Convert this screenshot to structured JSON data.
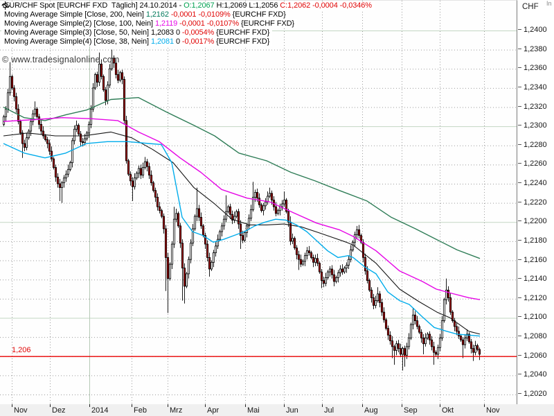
{
  "colors": {
    "up_candle": "#ffffff",
    "down_candle": "#a40000",
    "candle_border": "#000000",
    "grid_major": "#c3d6c3",
    "grid_dotted": "#9b9b9b",
    "year_line": "#b5c9b5",
    "red_line": "#e80000",
    "red_text": "#e00505",
    "green_text": "#00a050",
    "sma200": "#2f7d57",
    "sma100": "#e606e6",
    "sma50": "#141414",
    "sma38": "#00aceb",
    "axis_strip_bg": "#f0f0f0",
    "border": "#7a7a7a"
  },
  "watermark": "© www.tradesignalonline.com",
  "price_line_label": "1,206",
  "axes": {
    "currency_label": "CHF",
    "corner_fragment": "In"
  },
  "legend": {
    "rows": [
      {
        "icon": "candlestick-icon",
        "segments": [
          {
            "text": "EUR/CHF Spot [EURCHF FXD  Täglich] 24.10.2014 - ",
            "color": "#000000"
          },
          {
            "text": "O:1,2067 ",
            "color": "#00a050"
          },
          {
            "text": "H:1,2069 L:1,2056 ",
            "color": "#000000"
          },
          {
            "text": "C:1,2062 -0,0004 -0,0346%",
            "color": "#e00505"
          }
        ]
      },
      {
        "icon": "wave-icon",
        "segments": [
          {
            "text": "Moving Average Simple [Close, 200, Nein] ",
            "color": "#000000"
          },
          {
            "text": "1,2162",
            "color": "#00795a"
          },
          {
            "text": " -0,0001 -0,0109%",
            "color": "#e00505"
          },
          {
            "text": " {EURCHF FXD}",
            "color": "#000000"
          }
        ]
      },
      {
        "icon": "wave-icon",
        "segments": [
          {
            "text": "Moving Average Simple(2) [Close, 100, Nein] ",
            "color": "#000000"
          },
          {
            "text": "1,2119",
            "color": "#e606e6"
          },
          {
            "text": " -0,0001 -0,0107%",
            "color": "#e00505"
          },
          {
            "text": " {EURCHF FXD}",
            "color": "#000000"
          }
        ]
      },
      {
        "icon": "wave-icon",
        "segments": [
          {
            "text": "Moving Average Simple(3) [Close, 50, Nein] ",
            "color": "#000000"
          },
          {
            "text": "1,2083 0",
            "color": "#000000"
          },
          {
            "text": " -0,0054%",
            "color": "#e00505"
          },
          {
            "text": " {EURCHF FXD}",
            "color": "#000000"
          }
        ]
      },
      {
        "icon": "wave-icon",
        "segments": [
          {
            "text": "Moving Average Simple(4) [Close, 38, Nein] ",
            "color": "#000000"
          },
          {
            "text": "1,2081",
            "color": "#00aceb"
          },
          {
            "text": " 0",
            "color": "#000000"
          },
          {
            "text": " -0,0017%",
            "color": "#e00505"
          },
          {
            "text": " {EURCHF FXD}",
            "color": "#000000"
          }
        ]
      }
    ]
  },
  "chart_data": {
    "type": "candlestick",
    "title": "EUR/CHF Spot [EURCHF FXD Täglich] 24.10.2014",
    "price_scale": 10000,
    "y_axis": {
      "min": 12020,
      "max": 12400,
      "tick_step": 20,
      "major_every": 100,
      "ticks": [
        {
          "value": 12400,
          "label": "1,2400"
        },
        {
          "value": 12380,
          "label": "1,2380"
        },
        {
          "value": 12360,
          "label": "1,2360"
        },
        {
          "value": 12340,
          "label": "1,2340"
        },
        {
          "value": 12320,
          "label": "1,2320"
        },
        {
          "value": 12300,
          "label": "1,2300"
        },
        {
          "value": 12280,
          "label": "1,2280"
        },
        {
          "value": 12260,
          "label": "1,2260"
        },
        {
          "value": 12240,
          "label": "1,2240"
        },
        {
          "value": 12220,
          "label": "1,2220"
        },
        {
          "value": 12200,
          "label": "1,2200"
        },
        {
          "value": 12180,
          "label": "1,2180"
        },
        {
          "value": 12160,
          "label": "1,2160"
        },
        {
          "value": 12140,
          "label": "1,2140"
        },
        {
          "value": 12120,
          "label": "1,2120"
        },
        {
          "value": 12100,
          "label": "1,2100"
        },
        {
          "value": 12080,
          "label": "1,2080"
        },
        {
          "value": 12060,
          "label": "1,2060"
        },
        {
          "value": 12040,
          "label": "1,2040"
        },
        {
          "value": 12020,
          "label": "1,2020"
        }
      ]
    },
    "x_axis": {
      "months": [
        {
          "label": "Nov",
          "x": 17
        },
        {
          "label": "Dez",
          "x": 72
        },
        {
          "label": "2014",
          "x": 129,
          "year": true
        },
        {
          "label": "Feb",
          "x": 190
        },
        {
          "label": "Mrz",
          "x": 242
        },
        {
          "label": "Apr",
          "x": 296
        },
        {
          "label": "Mai",
          "x": 354
        },
        {
          "label": "Jun",
          "x": 410
        },
        {
          "label": "Jul",
          "x": 465
        },
        {
          "label": "Aug",
          "x": 523
        },
        {
          "label": "Sep",
          "x": 580
        },
        {
          "label": "Okt",
          "x": 635
        },
        {
          "label": "Nov",
          "x": 699
        }
      ]
    },
    "horizontal_line": {
      "price": 12060,
      "label": "1,206"
    },
    "candles": {
      "x_start": 5,
      "x_step": 3,
      "first_open": 12302,
      "closes": [
        12310,
        12318,
        12335,
        12352,
        12340,
        12331,
        12318,
        12305,
        12293,
        12282,
        12278,
        12288,
        12295,
        12305,
        12313,
        12318,
        12310,
        12302,
        12295,
        12290,
        12286,
        12282,
        12274,
        12266,
        12257,
        12247,
        12240,
        12236,
        12241,
        12246,
        12250,
        12255,
        12262,
        12285,
        12297,
        12301,
        12292,
        12284,
        12283,
        12287,
        12293,
        12302,
        12318,
        12340,
        12354,
        12346,
        12365,
        12352,
        12338,
        12327,
        12343,
        12360,
        12371,
        12366,
        12354,
        12348,
        12356,
        12349,
        12306,
        12264,
        12250,
        12243,
        12237,
        12246,
        12251,
        12256,
        12249,
        12257,
        12263,
        12258,
        12249,
        12241,
        12233,
        12226,
        12216,
        12212,
        12206,
        12193,
        12163,
        12141,
        12156,
        12177,
        12203,
        12209,
        12196,
        12178,
        12152,
        12133,
        12146,
        12161,
        12178,
        12193,
        12206,
        12214,
        12205,
        12196,
        12186,
        12177,
        12163,
        12151,
        12158,
        12168,
        12175,
        12182,
        12190,
        12196,
        12203,
        12211,
        12216,
        12208,
        12202,
        12206,
        12211,
        12198,
        12186,
        12181,
        12189,
        12196,
        12204,
        12213,
        12226,
        12231,
        12225,
        12218,
        12212,
        12217,
        12221,
        12227,
        12230,
        12223,
        12216,
        12209,
        12212,
        12216,
        12219,
        12223,
        12211,
        12200,
        12180,
        12183,
        12173,
        12166,
        12161,
        12156,
        12159,
        12165,
        12170,
        12168,
        12163,
        12158,
        12162,
        12157,
        12148,
        12139,
        12136,
        12142,
        12148,
        12151,
        12145,
        12138,
        12142,
        12147,
        12151,
        12148,
        12152,
        12155,
        12161,
        12171,
        12179,
        12187,
        12192,
        12186,
        12179,
        12163,
        12149,
        12139,
        12129,
        12121,
        12113,
        12118,
        12125,
        12116,
        12106,
        12098,
        12089,
        12082,
        12076,
        12070,
        12066,
        12073,
        12068,
        12062,
        12068,
        12061,
        12070,
        12079,
        12093,
        12103,
        12097,
        12091,
        12085,
        12079,
        12073,
        12079,
        12083,
        12077,
        12070,
        12064,
        12062,
        12069,
        12079,
        12097,
        12119,
        12129,
        12121,
        12106,
        12097,
        12091,
        12086,
        12081,
        12077,
        12072,
        12079,
        12083,
        12075,
        12068,
        12064,
        12071,
        12067,
        12062
      ],
      "wick_overrides": {
        "3": [
          12367,
          0
        ],
        "9": [
          0,
          12267
        ],
        "15": [
          12326,
          0
        ],
        "27": [
          0,
          12222
        ],
        "28": [
          0,
          12220
        ],
        "46": [
          12377,
          0
        ],
        "52": [
          12380,
          0
        ],
        "58": [
          12352,
          0
        ],
        "62": [
          0,
          12222
        ],
        "68": [
          12268,
          0
        ],
        "78": [
          0,
          12128
        ],
        "79": [
          0,
          12105
        ],
        "82": [
          12216,
          0
        ],
        "86": [
          0,
          12118
        ],
        "87": [
          0,
          12115
        ],
        "93": [
          12236,
          0
        ],
        "99": [
          0,
          12143
        ],
        "107": [
          12228,
          0
        ],
        "114": [
          0,
          12172
        ],
        "120": [
          12242,
          0
        ],
        "128": [
          12236,
          0
        ],
        "135": [
          12232,
          0
        ],
        "138": [
          12206,
          0
        ],
        "142": [
          0,
          12150
        ],
        "153": [
          0,
          12131
        ],
        "159": [
          0,
          12133
        ],
        "170": [
          12196,
          0
        ],
        "180": [
          12132,
          0
        ],
        "187": [
          0,
          12058
        ],
        "188": [
          0,
          12051
        ],
        "192": [
          0,
          12045
        ],
        "193": [
          0,
          12049
        ],
        "197": [
          12110,
          0
        ],
        "202": [
          0,
          12062
        ],
        "207": [
          0,
          12051
        ],
        "213": [
          12141,
          0
        ],
        "221": [
          0,
          12058
        ],
        "226": [
          0,
          12055
        ],
        "229": [
          12069,
          12056
        ]
      }
    },
    "series": [
      {
        "name": "SMA 200",
        "color": "#2f7d57",
        "points": [
          [
            5,
            12320
          ],
          [
            35,
            12309
          ],
          [
            65,
            12306
          ],
          [
            95,
            12312
          ],
          [
            125,
            12317
          ],
          [
            160,
            12328
          ],
          [
            200,
            12330
          ],
          [
            240,
            12315
          ],
          [
            280,
            12301
          ],
          [
            310,
            12290
          ],
          [
            345,
            12272
          ],
          [
            385,
            12264
          ],
          [
            420,
            12252
          ],
          [
            455,
            12243
          ],
          [
            490,
            12233
          ],
          [
            530,
            12222
          ],
          [
            565,
            12205
          ],
          [
            600,
            12193
          ],
          [
            630,
            12182
          ],
          [
            660,
            12171
          ],
          [
            693,
            12162
          ]
        ]
      },
      {
        "name": "SMA 100",
        "color": "#e606e6",
        "points": [
          [
            5,
            12305
          ],
          [
            50,
            12307
          ],
          [
            90,
            12309
          ],
          [
            130,
            12308
          ],
          [
            170,
            12306
          ],
          [
            200,
            12294
          ],
          [
            230,
            12284
          ],
          [
            260,
            12267
          ],
          [
            290,
            12252
          ],
          [
            320,
            12234
          ],
          [
            357,
            12225
          ],
          [
            390,
            12221
          ],
          [
            423,
            12210
          ],
          [
            457,
            12199
          ],
          [
            490,
            12192
          ],
          [
            510,
            12185
          ],
          [
            543,
            12170
          ],
          [
            577,
            12149
          ],
          [
            610,
            12138
          ],
          [
            630,
            12130
          ],
          [
            650,
            12126
          ],
          [
            677,
            12121
          ],
          [
            693,
            12119
          ]
        ]
      },
      {
        "name": "SMA 50",
        "color": "#141414",
        "points": [
          [
            5,
            12290
          ],
          [
            40,
            12293
          ],
          [
            80,
            12290
          ],
          [
            120,
            12290
          ],
          [
            160,
            12294
          ],
          [
            190,
            12288
          ],
          [
            220,
            12276
          ],
          [
            250,
            12262
          ],
          [
            280,
            12236
          ],
          [
            310,
            12219
          ],
          [
            335,
            12203
          ],
          [
            360,
            12197
          ],
          [
            385,
            12197
          ],
          [
            410,
            12198
          ],
          [
            435,
            12195
          ],
          [
            460,
            12189
          ],
          [
            480,
            12184
          ],
          [
            500,
            12179
          ],
          [
            510,
            12176
          ],
          [
            543,
            12157
          ],
          [
            577,
            12130
          ],
          [
            605,
            12117
          ],
          [
            631,
            12106
          ],
          [
            650,
            12100
          ],
          [
            677,
            12086
          ],
          [
            693,
            12083
          ]
        ]
      },
      {
        "name": "SMA 38",
        "color": "#00aceb",
        "points": [
          [
            5,
            12282
          ],
          [
            35,
            12272
          ],
          [
            65,
            12267
          ],
          [
            95,
            12272
          ],
          [
            125,
            12282
          ],
          [
            155,
            12284
          ],
          [
            185,
            12284
          ],
          [
            215,
            12282
          ],
          [
            233,
            12281
          ],
          [
            248,
            12262
          ],
          [
            263,
            12205
          ],
          [
            278,
            12190
          ],
          [
            293,
            12186
          ],
          [
            308,
            12179
          ],
          [
            323,
            12182
          ],
          [
            338,
            12186
          ],
          [
            353,
            12190
          ],
          [
            368,
            12196
          ],
          [
            383,
            12200
          ],
          [
            398,
            12203
          ],
          [
            413,
            12202
          ],
          [
            428,
            12197
          ],
          [
            443,
            12190
          ],
          [
            458,
            12180
          ],
          [
            473,
            12170
          ],
          [
            488,
            12163
          ],
          [
            503,
            12165
          ],
          [
            510,
            12163
          ],
          [
            527,
            12153
          ],
          [
            543,
            12146
          ],
          [
            560,
            12127
          ],
          [
            577,
            12118
          ],
          [
            591,
            12114
          ],
          [
            610,
            12101
          ],
          [
            627,
            12090
          ],
          [
            645,
            12086
          ],
          [
            660,
            12083
          ],
          [
            677,
            12082
          ],
          [
            693,
            12081
          ]
        ]
      }
    ]
  }
}
